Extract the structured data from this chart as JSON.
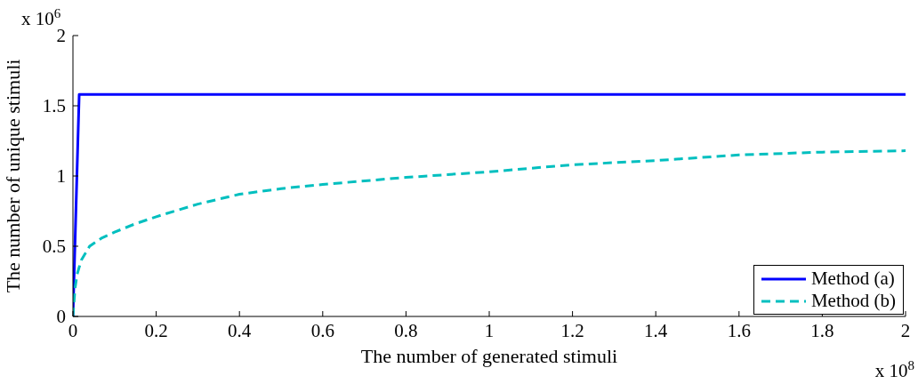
{
  "chart_data": {
    "type": "line",
    "xlabel": "The number of generated stimuli",
    "ylabel": "The number of unique stimuli",
    "annotations": [
      "x 10$^{6}$",
      "x 10$^{8}$"
    ],
    "xlim": [
      0,
      2
    ],
    "xticks": [
      0,
      0.2,
      0.4,
      0.6,
      0.8,
      1,
      1.2,
      1.4,
      1.6,
      1.8,
      2
    ],
    "ylim": [
      0,
      2
    ],
    "yticks": [
      0,
      0.5,
      1,
      1.5,
      2
    ],
    "grid": false,
    "legend": "bottom right",
    "marker": "none",
    "series": [
      {
        "name": "Method (a)",
        "color": "#0000ff",
        "line_style": "solid",
        "x": [
          0,
          0.015,
          2
        ],
        "values": [
          0,
          1.58,
          1.58
        ]
      },
      {
        "name": "Method (b)",
        "color": "#00bfbf",
        "line_style": "dashed",
        "x": [
          0,
          0.005,
          0.01,
          0.02,
          0.04,
          0.07,
          0.1,
          0.15,
          0.2,
          0.3,
          0.4,
          0.5,
          0.6,
          0.8,
          1,
          1.2,
          1.4,
          1.6,
          1.8,
          2
        ],
        "values": [
          0,
          0.2,
          0.3,
          0.4,
          0.5,
          0.56,
          0.6,
          0.66,
          0.71,
          0.8,
          0.87,
          0.91,
          0.94,
          0.99,
          1.03,
          1.08,
          1.11,
          1.15,
          1.17,
          1.18
        ]
      }
    ]
  }
}
